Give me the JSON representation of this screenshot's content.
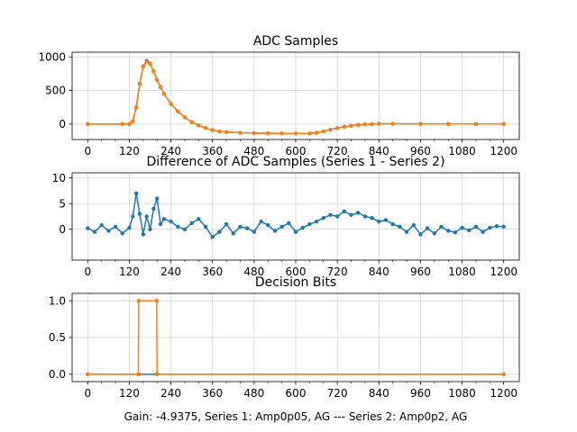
{
  "figure": {
    "caption": "Gain: -4.9375, Series 1: Amp0p05, AG --- Series 2: Amp0p2, AG",
    "colors": {
      "series1": "#1f77b4",
      "series2": "#ff7f0e",
      "grid": "#d3d3d3"
    }
  },
  "chart_data": [
    {
      "type": "line",
      "title": "ADC Samples",
      "xlabel": "",
      "ylabel": "",
      "xlim": [
        -45,
        1245
      ],
      "ylim": [
        -230,
        1070
      ],
      "xticks": [
        0,
        120,
        240,
        360,
        480,
        600,
        720,
        840,
        960,
        1080,
        1200
      ],
      "yticks": [
        0,
        500,
        1000
      ],
      "x_minor_step": 40,
      "grid": true,
      "legend": "none",
      "markers": true,
      "series": [
        {
          "name": "Series 1",
          "color": "#1f77b4",
          "x": [
            0,
            100,
            120,
            130,
            140,
            150,
            160,
            170,
            180,
            190,
            200,
            210,
            220,
            240,
            260,
            280,
            300,
            320,
            340,
            360,
            380,
            400,
            440,
            480,
            520,
            560,
            600,
            640,
            660,
            680,
            700,
            720,
            740,
            760,
            780,
            800,
            820,
            840,
            880,
            960,
            1040,
            1120,
            1200
          ],
          "values": [
            0,
            0,
            0,
            40,
            250,
            600,
            860,
            940,
            900,
            790,
            660,
            550,
            450,
            300,
            190,
            100,
            30,
            -20,
            -60,
            -90,
            -110,
            -120,
            -130,
            -135,
            -138,
            -140,
            -140,
            -140,
            -130,
            -110,
            -85,
            -60,
            -40,
            -25,
            -12,
            -5,
            0,
            5,
            5,
            3,
            2,
            2,
            2
          ]
        },
        {
          "name": "Series 2",
          "color": "#ff7f0e",
          "x": [
            0,
            100,
            120,
            130,
            140,
            150,
            160,
            170,
            180,
            190,
            200,
            210,
            220,
            240,
            260,
            280,
            300,
            320,
            340,
            360,
            380,
            400,
            440,
            480,
            520,
            560,
            600,
            640,
            660,
            680,
            700,
            720,
            740,
            760,
            780,
            800,
            820,
            840,
            880,
            960,
            1040,
            1120,
            1200
          ],
          "values": [
            0,
            0,
            0,
            38,
            245,
            596,
            855,
            930,
            893,
            782,
            655,
            548,
            449,
            300,
            190,
            100,
            30,
            -20,
            -60,
            -90,
            -110,
            -120,
            -130,
            -135,
            -138,
            -140,
            -140,
            -140,
            -130,
            -110,
            -85,
            -62,
            -42,
            -27,
            -14,
            -7,
            -2,
            3,
            3,
            2,
            1,
            1,
            1
          ]
        }
      ]
    },
    {
      "type": "line",
      "title": "Difference of ADC Samples (Series 1 - Series 2)",
      "xlabel": "",
      "ylabel": "",
      "xlim": [
        -45,
        1245
      ],
      "ylim": [
        -6,
        11
      ],
      "xticks": [
        0,
        120,
        240,
        360,
        480,
        600,
        720,
        840,
        960,
        1080,
        1200
      ],
      "yticks": [
        0,
        5,
        10
      ],
      "x_minor_step": 40,
      "grid": true,
      "legend": "none",
      "markers": true,
      "series": [
        {
          "name": "Difference",
          "color": "#1f77b4",
          "x": [
            0,
            20,
            40,
            60,
            80,
            100,
            120,
            130,
            140,
            150,
            160,
            170,
            180,
            190,
            200,
            210,
            220,
            240,
            260,
            280,
            300,
            320,
            340,
            360,
            380,
            400,
            420,
            440,
            460,
            480,
            500,
            520,
            540,
            560,
            580,
            600,
            620,
            640,
            660,
            680,
            700,
            720,
            740,
            760,
            780,
            800,
            820,
            840,
            860,
            880,
            900,
            920,
            940,
            960,
            980,
            1000,
            1020,
            1040,
            1060,
            1080,
            1100,
            1120,
            1140,
            1160,
            1180,
            1200
          ],
          "values": [
            0.2,
            -0.5,
            0.8,
            -0.3,
            0.5,
            -0.8,
            0.3,
            2.5,
            7,
            3,
            -1,
            2.5,
            0,
            4,
            6,
            1,
            2,
            1.5,
            0.5,
            0,
            1.2,
            2,
            0.5,
            -1.5,
            -0.5,
            1,
            -0.8,
            0.5,
            0.2,
            -0.5,
            1.5,
            0.8,
            -0.3,
            0.5,
            1.2,
            -0.5,
            0.3,
            1,
            1.5,
            2.2,
            2.8,
            2.5,
            3.5,
            2.8,
            3.2,
            2.5,
            2.2,
            1.5,
            1.8,
            1,
            0.5,
            -0.5,
            0.8,
            -1,
            0.2,
            -0.8,
            0.5,
            -0.3,
            -0.6,
            0.3,
            -0.2,
            0.5,
            -0.5,
            0.3,
            0.6,
            0.5
          ]
        }
      ]
    },
    {
      "type": "line",
      "title": "Decision Bits",
      "xlabel": "",
      "ylabel": "",
      "xlim": [
        -45,
        1245
      ],
      "ylim": [
        -0.1,
        1.1
      ],
      "xticks": [
        0,
        120,
        240,
        360,
        480,
        600,
        720,
        840,
        960,
        1080,
        1200
      ],
      "yticks": [
        0.0,
        0.5,
        1.0
      ],
      "x_minor_step": 40,
      "grid": true,
      "legend": "none",
      "markers": true,
      "series": [
        {
          "name": "Series 1",
          "color": "#1f77b4",
          "x": [
            0,
            146,
            147,
            199,
            200,
            1200
          ],
          "values": [
            0,
            0,
            0,
            0,
            0,
            0
          ]
        },
        {
          "name": "Series 2",
          "color": "#ff7f0e",
          "x": [
            0,
            146,
            147,
            199,
            200,
            1200
          ],
          "values": [
            0,
            0,
            1,
            1,
            0,
            0
          ]
        }
      ]
    }
  ]
}
